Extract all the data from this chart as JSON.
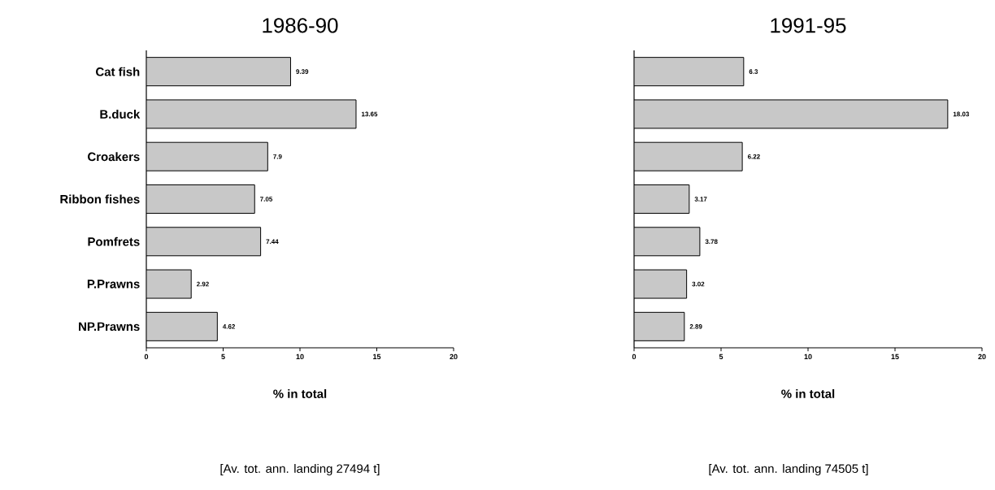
{
  "chart_data": [
    {
      "type": "bar",
      "orientation": "horizontal",
      "title": "1986-90",
      "xlabel": "% in total",
      "annotations": [
        "[Av. tot. ann. landing 27494 t]"
      ],
      "categories": [
        "Cat fish",
        "B.duck",
        "Croakers",
        "Ribbon fishes",
        "Pomfrets",
        "P.Prawns",
        "NP.Prawns"
      ],
      "values": [
        9.39,
        13.65,
        7.9,
        7.05,
        7.44,
        2.92,
        4.62
      ],
      "color": "#c8c8c8",
      "data_labels": true,
      "xlim": [
        0,
        20
      ],
      "xticks": [
        0,
        5,
        10,
        15,
        20
      ]
    },
    {
      "type": "bar",
      "orientation": "horizontal",
      "title": "1991-95",
      "xlabel": "% in total",
      "annotations": [
        "[Av. tot. ann. landing 74505 t]"
      ],
      "categories": [
        null,
        null,
        null,
        null,
        null,
        null,
        null
      ],
      "values": [
        6.3,
        18.03,
        6.22,
        3.17,
        3.78,
        3.02,
        2.89
      ],
      "color": "#c8c8c8",
      "data_labels": true,
      "xlim": [
        0,
        20
      ],
      "xticks": [
        0,
        5,
        10,
        15,
        20
      ],
      "tick_labels": "x"
    }
  ]
}
